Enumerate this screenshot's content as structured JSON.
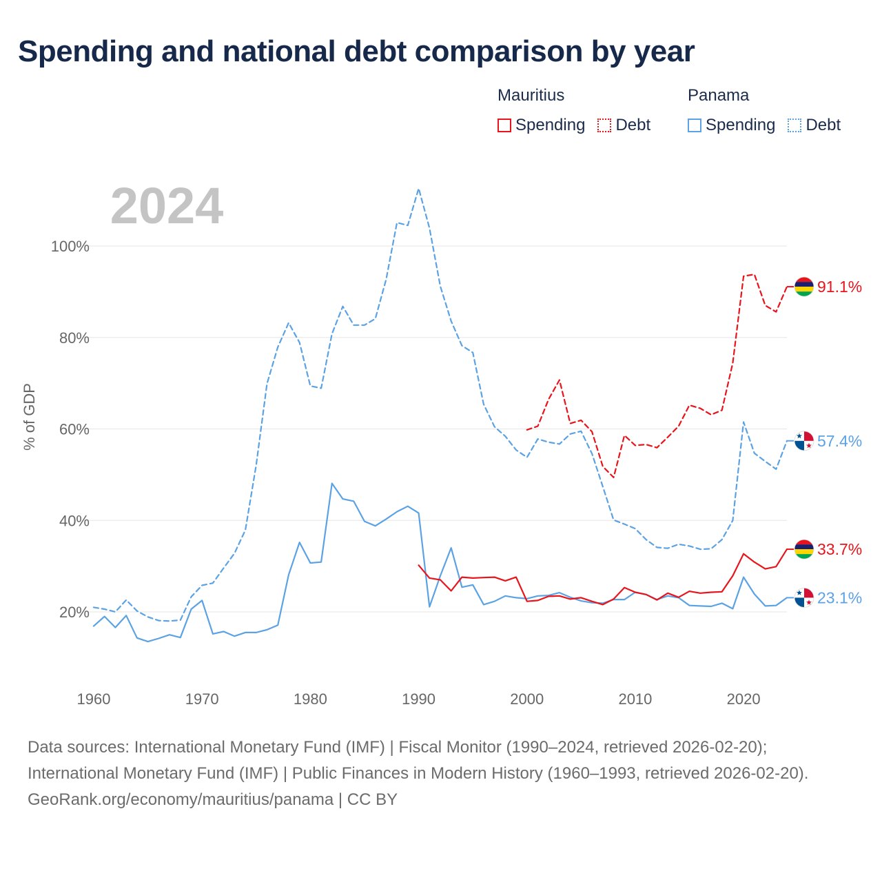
{
  "title": "Spending and national debt comparison by year",
  "legend": {
    "groups": [
      {
        "name": "Mauritius",
        "color": "#e8141b",
        "items": [
          "Spending",
          "Debt"
        ]
      },
      {
        "name": "Panama",
        "color": "#5ba2e4",
        "items": [
          "Spending",
          "Debt"
        ]
      }
    ]
  },
  "footer": {
    "sources": "Data sources: International Monetary Fund (IMF) | Fiscal Monitor (1990–2024, retrieved 2026-02-20); International Monetary Fund (IMF) | Public Finances in Modern History (1960–1993, retrieved 2026-02-20).",
    "attribution": "GeoRank.org/economy/mauritius/panama | CC BY"
  },
  "chart_data": {
    "type": "line",
    "year_label": "2024",
    "ylabel": "% of GDP",
    "xlabel": "",
    "xlim": [
      1960,
      2024
    ],
    "ylim": [
      10,
      115
    ],
    "x_ticks": [
      1960,
      1970,
      1980,
      1990,
      2000,
      2010,
      2020
    ],
    "y_ticks": [
      20,
      40,
      60,
      80,
      100
    ],
    "y_tick_labels": [
      "20%",
      "40%",
      "60%",
      "80%",
      "100%"
    ],
    "grid": true,
    "series": [
      {
        "name": "Panama Debt",
        "country": "Panama",
        "metric": "Debt",
        "color": "#5ba2e4",
        "dashed": true,
        "end_label": "57.4%",
        "x": [
          1960,
          1961,
          1962,
          1963,
          1964,
          1965,
          1966,
          1967,
          1968,
          1969,
          1970,
          1971,
          1972,
          1973,
          1974,
          1975,
          1976,
          1977,
          1978,
          1979,
          1980,
          1981,
          1982,
          1983,
          1984,
          1985,
          1986,
          1987,
          1988,
          1989,
          1990,
          1991,
          1992,
          1993,
          1994,
          1995,
          1996,
          1997,
          1998,
          1999,
          2000,
          2001,
          2002,
          2003,
          2004,
          2005,
          2006,
          2007,
          2008,
          2009,
          2010,
          2011,
          2012,
          2013,
          2014,
          2015,
          2016,
          2017,
          2018,
          2019,
          2020,
          2021,
          2022,
          2023,
          2024
        ],
        "values": [
          21.0,
          20.6,
          20.0,
          22.6,
          20.2,
          18.9,
          18.1,
          18.0,
          18.2,
          23.3,
          25.8,
          26.3,
          29.6,
          32.8,
          37.9,
          52.1,
          69.9,
          77.9,
          83.2,
          78.9,
          69.4,
          68.9,
          80.8,
          86.8,
          82.7,
          82.7,
          84.1,
          92.7,
          105.1,
          104.5,
          112.6,
          103.9,
          91.2,
          83.6,
          78.2,
          76.7,
          65.4,
          60.5,
          58.4,
          55.4,
          53.8,
          57.8,
          57.1,
          56.7,
          58.9,
          59.5,
          54.6,
          47.4,
          40.1,
          39.2,
          38.2,
          35.8,
          34.1,
          33.9,
          34.8,
          34.4,
          33.7,
          33.8,
          35.8,
          40.0,
          61.5,
          54.7,
          52.9,
          51.2,
          57.4
        ]
      },
      {
        "name": "Panama Spending",
        "country": "Panama",
        "metric": "Spending",
        "color": "#5ba2e4",
        "dashed": false,
        "end_label": "23.1%",
        "x": [
          1960,
          1961,
          1962,
          1963,
          1964,
          1965,
          1966,
          1967,
          1968,
          1969,
          1970,
          1971,
          1972,
          1973,
          1974,
          1975,
          1976,
          1977,
          1978,
          1979,
          1980,
          1981,
          1982,
          1983,
          1984,
          1985,
          1986,
          1987,
          1988,
          1989,
          1990,
          1991,
          1992,
          1993,
          1994,
          1995,
          1996,
          1997,
          1998,
          1999,
          2000,
          2001,
          2002,
          2003,
          2004,
          2005,
          2006,
          2007,
          2008,
          2009,
          2010,
          2011,
          2012,
          2013,
          2014,
          2015,
          2016,
          2017,
          2018,
          2019,
          2020,
          2021,
          2022,
          2023,
          2024
        ],
        "values": [
          16.9,
          19.0,
          16.6,
          19.2,
          14.3,
          13.5,
          14.2,
          15.0,
          14.4,
          20.6,
          22.5,
          15.2,
          15.7,
          14.7,
          15.5,
          15.5,
          16.1,
          17.1,
          28.1,
          35.2,
          30.7,
          30.9,
          48.1,
          44.7,
          44.2,
          39.8,
          38.8,
          40.3,
          41.9,
          43.1,
          41.6,
          21.1,
          27.9,
          34.0,
          25.4,
          25.9,
          21.6,
          22.3,
          23.5,
          23.1,
          22.9,
          23.5,
          23.6,
          24.2,
          23.2,
          22.4,
          22.0,
          21.9,
          22.7,
          22.7,
          24.3,
          23.8,
          22.7,
          23.5,
          23.1,
          21.4,
          21.3,
          21.2,
          21.9,
          20.7,
          27.6,
          23.9,
          21.3,
          21.4,
          23.1
        ]
      },
      {
        "name": "Mauritius Debt",
        "country": "Mauritius",
        "metric": "Debt",
        "color": "#e8141b",
        "dashed": true,
        "end_label": "91.1%",
        "x": [
          2000,
          2001,
          2002,
          2003,
          2004,
          2005,
          2006,
          2007,
          2008,
          2009,
          2010,
          2011,
          2012,
          2013,
          2014,
          2015,
          2016,
          2017,
          2018,
          2019,
          2020,
          2021,
          2022,
          2023,
          2024
        ],
        "values": [
          59.8,
          60.6,
          66.5,
          70.7,
          61.2,
          61.9,
          59.4,
          51.8,
          49.4,
          58.6,
          56.4,
          56.6,
          55.9,
          58.2,
          60.6,
          65.2,
          64.5,
          63.1,
          64.1,
          74.4,
          93.4,
          93.8,
          87.0,
          85.6,
          91.1
        ]
      },
      {
        "name": "Mauritius Spending",
        "country": "Mauritius",
        "metric": "Spending",
        "color": "#e8141b",
        "dashed": false,
        "end_label": "33.7%",
        "x": [
          1990,
          1991,
          1992,
          1993,
          1994,
          1995,
          1996,
          1997,
          1998,
          1999,
          2000,
          2001,
          2002,
          2003,
          2004,
          2005,
          2006,
          2007,
          2008,
          2009,
          2010,
          2011,
          2012,
          2013,
          2014,
          2015,
          2016,
          2017,
          2018,
          2019,
          2020,
          2021,
          2022,
          2023,
          2024
        ],
        "values": [
          30.2,
          27.4,
          27.0,
          24.6,
          27.6,
          27.4,
          27.5,
          27.6,
          26.8,
          27.6,
          22.3,
          22.5,
          23.4,
          23.5,
          22.8,
          23.1,
          22.3,
          21.6,
          22.8,
          25.3,
          24.3,
          23.8,
          22.6,
          24.1,
          23.2,
          24.5,
          24.1,
          24.3,
          24.4,
          27.9,
          32.7,
          30.9,
          29.4,
          29.9,
          33.7
        ]
      }
    ]
  }
}
